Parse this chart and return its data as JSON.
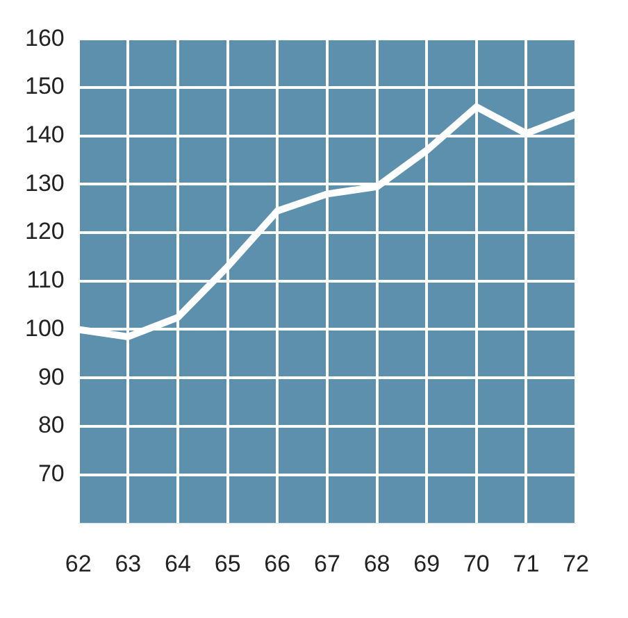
{
  "chart_data": {
    "type": "line",
    "x": [
      62,
      63,
      64,
      65,
      66,
      67,
      68,
      69,
      70,
      71,
      72
    ],
    "series": [
      {
        "color": "#ffffff",
        "values": [
          100,
          98.5,
          102.5,
          113,
          124.5,
          128,
          129.5,
          137,
          146,
          140.5,
          144.5
        ]
      }
    ],
    "xlim": [
      62,
      72
    ],
    "xticks": [
      62,
      63,
      64,
      65,
      66,
      67,
      68,
      69,
      70,
      71,
      72
    ],
    "ylim": [
      60,
      160
    ],
    "yticks": [
      70,
      80,
      90,
      100,
      110,
      120,
      130,
      140,
      150,
      160
    ],
    "grid": true,
    "legend": false,
    "marker": "none",
    "line_style": "solid"
  }
}
